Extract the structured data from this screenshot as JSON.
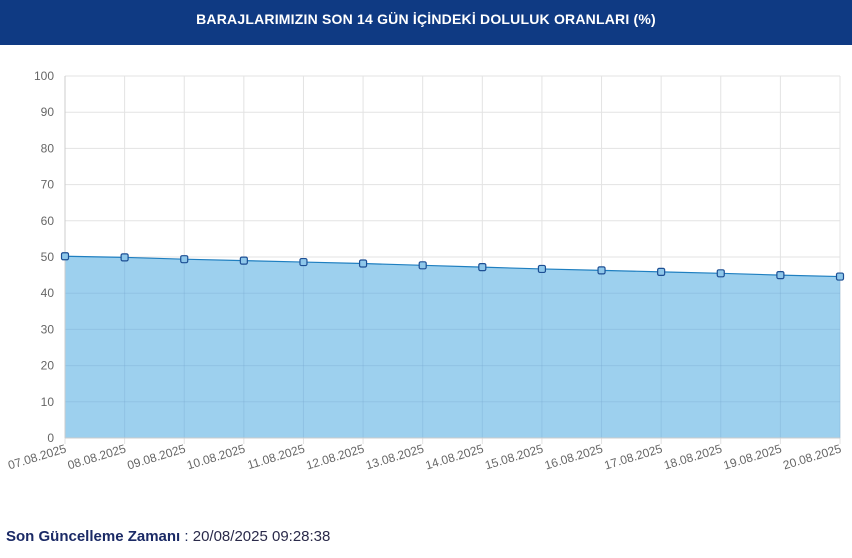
{
  "header": {
    "title": "BARAJLARIMIZIN SON 14 GÜN İÇİNDEKİ DOLULUK ORANLARI (%)"
  },
  "chart_data": {
    "type": "area",
    "title": "BARAJLARIMIZIN SON 14 GÜN İÇİNDEKİ DOLULUK ORANLARI (%)",
    "xlabel": "",
    "ylabel": "",
    "ylim": [
      0,
      100
    ],
    "yticks": [
      0,
      10,
      20,
      30,
      40,
      50,
      60,
      70,
      80,
      90,
      100
    ],
    "grid": true,
    "legend": "none",
    "categories": [
      "07.08.2025",
      "08.08.2025",
      "09.08.2025",
      "10.08.2025",
      "11.08.2025",
      "12.08.2025",
      "13.08.2025",
      "14.08.2025",
      "15.08.2025",
      "16.08.2025",
      "17.08.2025",
      "18.08.2025",
      "19.08.2025",
      "20.08.2025"
    ],
    "series": [
      {
        "values": [
          50.2,
          49.9,
          49.4,
          49.0,
          48.6,
          48.2,
          47.7,
          47.2,
          46.7,
          46.3,
          45.9,
          45.5,
          45.0,
          44.6
        ]
      }
    ],
    "colors": {
      "fill": "#9dd0ee",
      "line": "#1f7fc0",
      "marker_fill": "#8ec7ea",
      "marker_stroke": "#1d4f94",
      "grid": "#e3e3e3",
      "tick_text": "#666666"
    }
  },
  "footer": {
    "label": "Son Güncelleme Zamanı",
    "separator": " : ",
    "value": "20/08/2025 09:28:38"
  }
}
